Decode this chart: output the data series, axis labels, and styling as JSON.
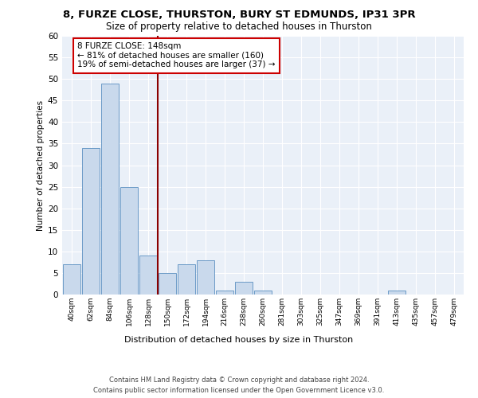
{
  "title1": "8, FURZE CLOSE, THURSTON, BURY ST EDMUNDS, IP31 3PR",
  "title2": "Size of property relative to detached houses in Thurston",
  "xlabel": "Distribution of detached houses by size in Thurston",
  "ylabel": "Number of detached properties",
  "categories": [
    "40sqm",
    "62sqm",
    "84sqm",
    "106sqm",
    "128sqm",
    "150sqm",
    "172sqm",
    "194sqm",
    "216sqm",
    "238sqm",
    "260sqm",
    "281sqm",
    "303sqm",
    "325sqm",
    "347sqm",
    "369sqm",
    "391sqm",
    "413sqm",
    "435sqm",
    "457sqm",
    "479sqm"
  ],
  "values": [
    7,
    34,
    49,
    25,
    9,
    5,
    7,
    8,
    1,
    3,
    1,
    0,
    0,
    0,
    0,
    0,
    0,
    1,
    0,
    0,
    0
  ],
  "bar_color": "#c9d9ec",
  "bar_edge_color": "#5a8fc0",
  "vline_color": "#8b0000",
  "annotation_text": "8 FURZE CLOSE: 148sqm\n← 81% of detached houses are smaller (160)\n19% of semi-detached houses are larger (37) →",
  "annotation_box_color": "#ffffff",
  "annotation_box_edge_color": "#cc0000",
  "ylim": [
    0,
    60
  ],
  "yticks": [
    0,
    5,
    10,
    15,
    20,
    25,
    30,
    35,
    40,
    45,
    50,
    55,
    60
  ],
  "bg_color": "#eaf0f8",
  "footer1": "Contains HM Land Registry data © Crown copyright and database right 2024.",
  "footer2": "Contains public sector information licensed under the Open Government Licence v3.0."
}
